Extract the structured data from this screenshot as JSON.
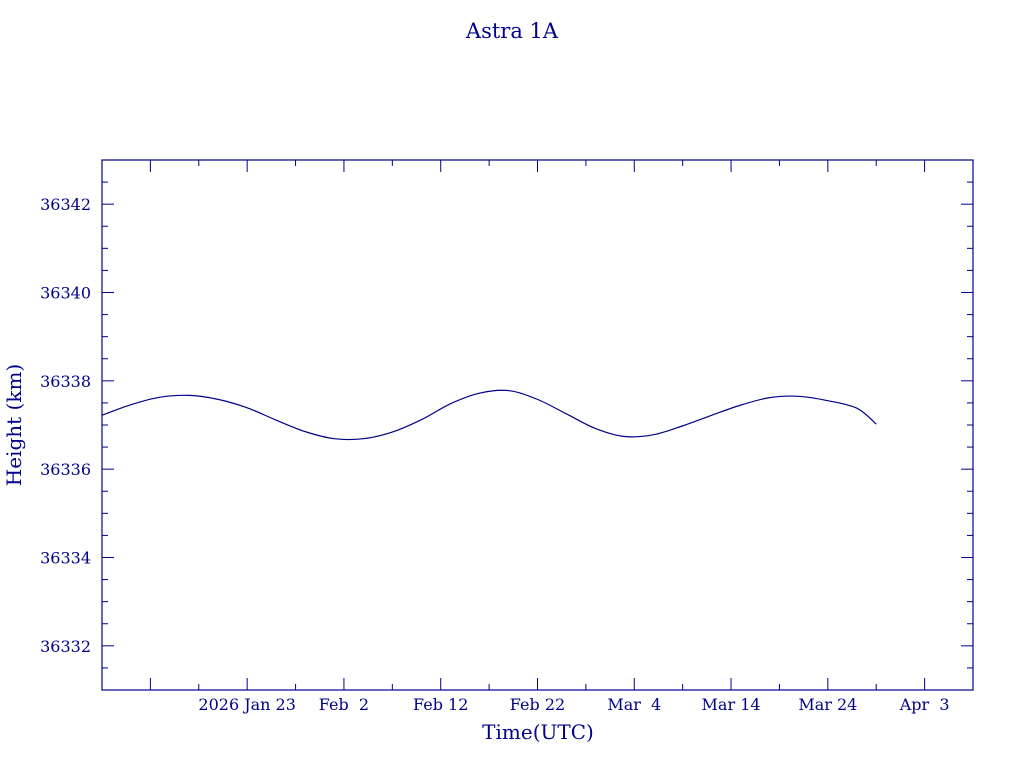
{
  "chart_data": {
    "type": "line",
    "title": "Astra 1A",
    "xlabel": "Time(UTC)",
    "ylabel": "Height (km)",
    "x_range": [
      "2026-01-08",
      "2026-04-08"
    ],
    "ylim": [
      36331,
      36343
    ],
    "x_tick_labels": [
      {
        "date": "2026-01-23",
        "label": "2026 Jan 23"
      },
      {
        "date": "2026-02-02",
        "label": "Feb  2"
      },
      {
        "date": "2026-02-12",
        "label": "Feb 12"
      },
      {
        "date": "2026-02-22",
        "label": "Feb 22"
      },
      {
        "date": "2026-03-04",
        "label": "Mar  4"
      },
      {
        "date": "2026-03-14",
        "label": "Mar 14"
      },
      {
        "date": "2026-03-24",
        "label": "Mar 24"
      },
      {
        "date": "2026-04-03",
        "label": "Apr  3"
      }
    ],
    "y_ticks": [
      36332,
      36334,
      36336,
      36338,
      36340,
      36342
    ],
    "series": [
      {
        "color": "#00008b",
        "points": [
          {
            "x": "2026-01-08",
            "y": 36337.22
          },
          {
            "x": "2026-01-11",
            "y": 36337.46
          },
          {
            "x": "2026-01-14",
            "y": 36337.63
          },
          {
            "x": "2026-01-17",
            "y": 36337.67
          },
          {
            "x": "2026-01-20",
            "y": 36337.58
          },
          {
            "x": "2026-01-23",
            "y": 36337.39
          },
          {
            "x": "2026-01-26",
            "y": 36337.11
          },
          {
            "x": "2026-01-29",
            "y": 36336.85
          },
          {
            "x": "2026-02-01",
            "y": 36336.69
          },
          {
            "x": "2026-02-04",
            "y": 36336.69
          },
          {
            "x": "2026-02-07",
            "y": 36336.84
          },
          {
            "x": "2026-02-10",
            "y": 36337.12
          },
          {
            "x": "2026-02-13",
            "y": 36337.48
          },
          {
            "x": "2026-02-16",
            "y": 36337.72
          },
          {
            "x": "2026-02-19",
            "y": 36337.78
          },
          {
            "x": "2026-02-22",
            "y": 36337.58
          },
          {
            "x": "2026-02-25",
            "y": 36337.25
          },
          {
            "x": "2026-02-28",
            "y": 36336.92
          },
          {
            "x": "2026-03-03",
            "y": 36336.74
          },
          {
            "x": "2026-03-06",
            "y": 36336.78
          },
          {
            "x": "2026-03-09",
            "y": 36336.98
          },
          {
            "x": "2026-03-12",
            "y": 36337.22
          },
          {
            "x": "2026-03-15",
            "y": 36337.45
          },
          {
            "x": "2026-03-18",
            "y": 36337.62
          },
          {
            "x": "2026-03-21",
            "y": 36337.65
          },
          {
            "x": "2026-03-24",
            "y": 36337.55
          },
          {
            "x": "2026-03-27",
            "y": 36337.38
          },
          {
            "x": "2026-03-29",
            "y": 36337.02
          }
        ]
      }
    ],
    "grid": false,
    "legend": "none"
  }
}
